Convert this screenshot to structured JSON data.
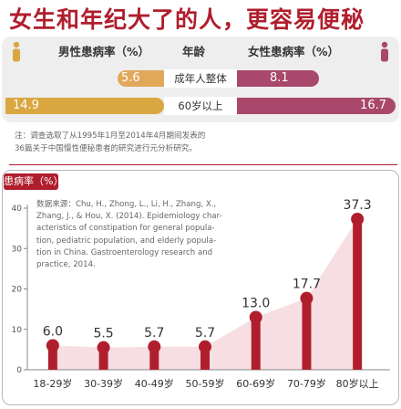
{
  "headline": "女生和年纪大了的人，更容易便秘",
  "comparison": {
    "header": {
      "male": "男性患病率（%）",
      "group": "年龄",
      "female": "女性患病率（%）"
    },
    "rows": [
      {
        "group": "成年人整体",
        "male": 5.6,
        "female": 8.1,
        "male_label": "5.6",
        "female_label": "8.1"
      },
      {
        "group": "60岁以上",
        "male": 14.9,
        "female": 16.7,
        "male_label": "14.9",
        "female_label": "16.7"
      }
    ],
    "colors": {
      "male": "#d9a640",
      "female": "#a9486b"
    },
    "icons": {
      "male": "person-icon",
      "female": "person-icon"
    }
  },
  "note": {
    "line1": "注：调查选取了从1995年1月至2014年4月期间发表的",
    "line2": "36篇关于中国慢性便秘患者的研究进行元分析研究。"
  },
  "source": {
    "lines": [
      "数据来源：Chu, H., Zhong, L., Li, H., Zhang, X.,",
      "Zhang, J., & Hou, X. (2014). Epidemiology char-",
      "acteristics of constipation for general popula-",
      "tion, pediatric population, and elderly popula-",
      "tion in China. Gastroenterology research and",
      "practice, 2014."
    ]
  },
  "chart_data": {
    "type": "bar",
    "ylabel": "患病率（%）",
    "categories": [
      "18-29岁",
      "30-39岁",
      "40-49岁",
      "50-59岁",
      "60-69岁",
      "70-79岁",
      "80岁以上"
    ],
    "values": [
      6.0,
      5.5,
      5.7,
      5.7,
      13.0,
      17.7,
      37.3
    ],
    "value_labels": [
      "6.0",
      "5.5",
      "5.7",
      "5.7",
      "13.0",
      "17.7",
      "37.3"
    ],
    "ylim": [
      0,
      40
    ],
    "yticks": [
      0,
      10,
      20,
      30,
      40
    ],
    "ytick_labels": [
      "0",
      "10",
      "20",
      "30",
      "40"
    ],
    "bar_color": "#b01e2d",
    "area_color": "#f7dee3",
    "grid": false
  }
}
